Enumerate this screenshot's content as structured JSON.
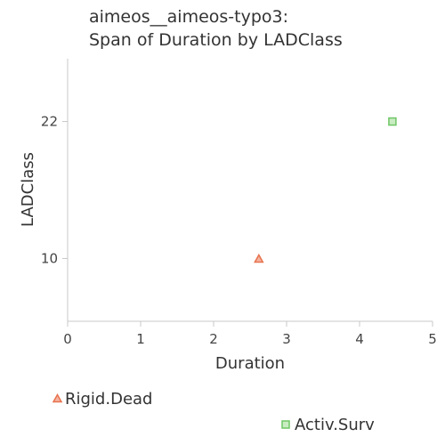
{
  "chart_data": {
    "type": "scatter",
    "title_lines": [
      "aimeos__aimeos-typo3:",
      "Span of Duration by LADClass"
    ],
    "xlabel": "Duration",
    "ylabel": "LADClass",
    "xlim": [
      0,
      5
    ],
    "ylim": [
      4.5,
      27.5
    ],
    "x_ticks": [
      0,
      1,
      2,
      3,
      4,
      5
    ],
    "y_ticks": [
      10,
      22
    ],
    "grid": false,
    "series": [
      {
        "name": "Rigid.Dead",
        "marker": "triangle",
        "fill": "#f4b3a0",
        "stroke": "#e8734e",
        "points": [
          {
            "x": 2.62,
            "y": 10
          }
        ]
      },
      {
        "name": "Activ.Surv",
        "marker": "square",
        "fill": "#c9ecc2",
        "stroke": "#6fc665",
        "points": [
          {
            "x": 4.45,
            "y": 22
          }
        ]
      }
    ],
    "legend_position": "bottom"
  }
}
